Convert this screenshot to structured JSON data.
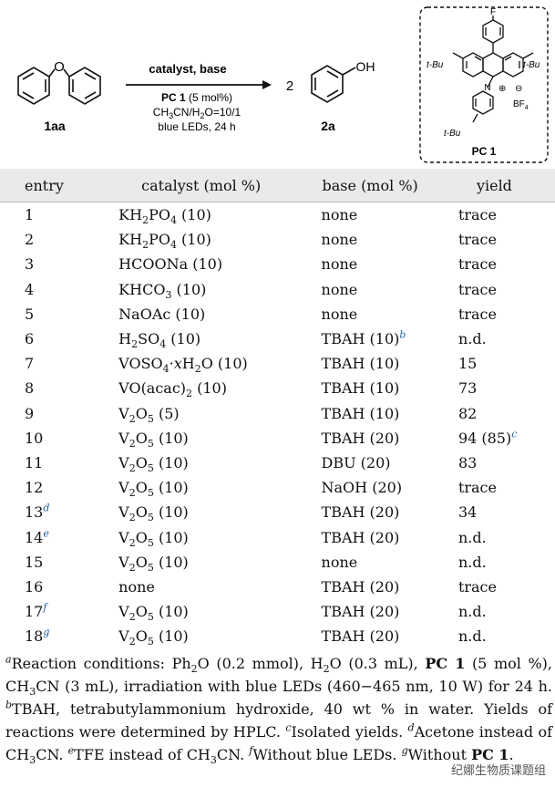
{
  "scheme": {
    "reactant_label": "1aa",
    "reactant_atom": "O",
    "arrow_above": "catalyst, base",
    "arrow_below_1": "PC 1 (5 mol%)",
    "arrow_below_2": "CH3CN/H2O=10/1",
    "arrow_below_3": "blue LEDs, 24 h",
    "coefficient": "2",
    "product_group": "OH",
    "product_label": "2a",
    "pc": {
      "f": "F",
      "tbu_left": "t-Bu",
      "tbu_right": "t-Bu",
      "tbu_bottom": "t-Bu",
      "n": "N",
      "plus": "⊕",
      "minus": "⊖",
      "bf4": "BF4",
      "label": "PC 1"
    }
  },
  "table": {
    "headers": [
      "entry",
      "catalyst (mol %)",
      "base (mol %)",
      "yield"
    ],
    "rows": [
      {
        "entry": "1",
        "fn": "",
        "cat": "KH2PO4 (10)",
        "base": "none",
        "bfn": "",
        "yield": "trace",
        "yfn": ""
      },
      {
        "entry": "2",
        "fn": "",
        "cat": "KH2PO4 (10)",
        "base": "none",
        "bfn": "",
        "yield": "trace",
        "yfn": ""
      },
      {
        "entry": "3",
        "fn": "",
        "cat": "HCOONa (10)",
        "base": "none",
        "bfn": "",
        "yield": "trace",
        "yfn": ""
      },
      {
        "entry": "4",
        "fn": "",
        "cat": "KHCO3 (10)",
        "base": "none",
        "bfn": "",
        "yield": "trace",
        "yfn": ""
      },
      {
        "entry": "5",
        "fn": "",
        "cat": "NaOAc (10)",
        "base": "none",
        "bfn": "",
        "yield": "trace",
        "yfn": ""
      },
      {
        "entry": "6",
        "fn": "",
        "cat": "H2SO4 (10)",
        "base": "TBAH (10)",
        "bfn": "b",
        "yield": "n.d.",
        "yfn": ""
      },
      {
        "entry": "7",
        "fn": "",
        "cat": "VOSO4·xH2O (10)",
        "base": "TBAH (10)",
        "bfn": "",
        "yield": "15",
        "yfn": ""
      },
      {
        "entry": "8",
        "fn": "",
        "cat": "VO(acac)2 (10)",
        "base": "TBAH (10)",
        "bfn": "",
        "yield": "73",
        "yfn": ""
      },
      {
        "entry": "9",
        "fn": "",
        "cat": "V2O5 (5)",
        "base": "TBAH (10)",
        "bfn": "",
        "yield": "82",
        "yfn": ""
      },
      {
        "entry": "10",
        "fn": "",
        "cat": "V2O5 (10)",
        "base": "TBAH (20)",
        "bfn": "",
        "yield": "94 (85)",
        "yfn": "c"
      },
      {
        "entry": "11",
        "fn": "",
        "cat": "V2O5 (10)",
        "base": "DBU (20)",
        "bfn": "",
        "yield": "83",
        "yfn": ""
      },
      {
        "entry": "12",
        "fn": "",
        "cat": "V2O5 (10)",
        "base": "NaOH (20)",
        "bfn": "",
        "yield": "trace",
        "yfn": ""
      },
      {
        "entry": "13",
        "fn": "d",
        "cat": "V2O5 (10)",
        "base": "TBAH (20)",
        "bfn": "",
        "yield": "34",
        "yfn": ""
      },
      {
        "entry": "14",
        "fn": "e",
        "cat": "V2O5 (10)",
        "base": "TBAH (20)",
        "bfn": "",
        "yield": "n.d.",
        "yfn": ""
      },
      {
        "entry": "15",
        "fn": "",
        "cat": "V2O5 (10)",
        "base": "none",
        "bfn": "",
        "yield": "n.d.",
        "yfn": ""
      },
      {
        "entry": "16",
        "fn": "",
        "cat": "none",
        "base": "TBAH (20)",
        "bfn": "",
        "yield": "trace",
        "yfn": ""
      },
      {
        "entry": "17",
        "fn": "f",
        "cat": "V2O5 (10)",
        "base": "TBAH (20)",
        "bfn": "",
        "yield": "n.d.",
        "yfn": ""
      },
      {
        "entry": "18",
        "fn": "g",
        "cat": "V2O5 (10)",
        "base": "TBAH (20)",
        "bfn": "",
        "yield": "n.d.",
        "yfn": ""
      }
    ]
  },
  "footnotes": {
    "a_mark": "a",
    "a_text": "Reaction conditions: Ph2O (0.2 mmol), H2O (0.3 mL), PC 1 (5 mol %), CH3CN (3 mL), irradiation with blue LEDs (460−465 nm, 10 W) for 24 h.",
    "b_mark": "b",
    "b_text": "TBAH, tetrabutylammonium hydroxide, 40 wt % in water. Yields of reactions were determined by HPLC.",
    "c_mark": "c",
    "c_text": "Isolated yields.",
    "d_mark": "d",
    "d_text": "Acetone instead of CH3CN.",
    "e_mark": "e",
    "e_text": "TFE instead of CH3CN.",
    "f_mark": "f",
    "f_text": "Without blue LEDs.",
    "g_mark": "g",
    "g_text": "Without PC 1."
  },
  "watermark": "纪娜生物质课题组",
  "colors": {
    "header_bg": "#e8eaeb",
    "footnote_mark": "#1f5fa8"
  }
}
